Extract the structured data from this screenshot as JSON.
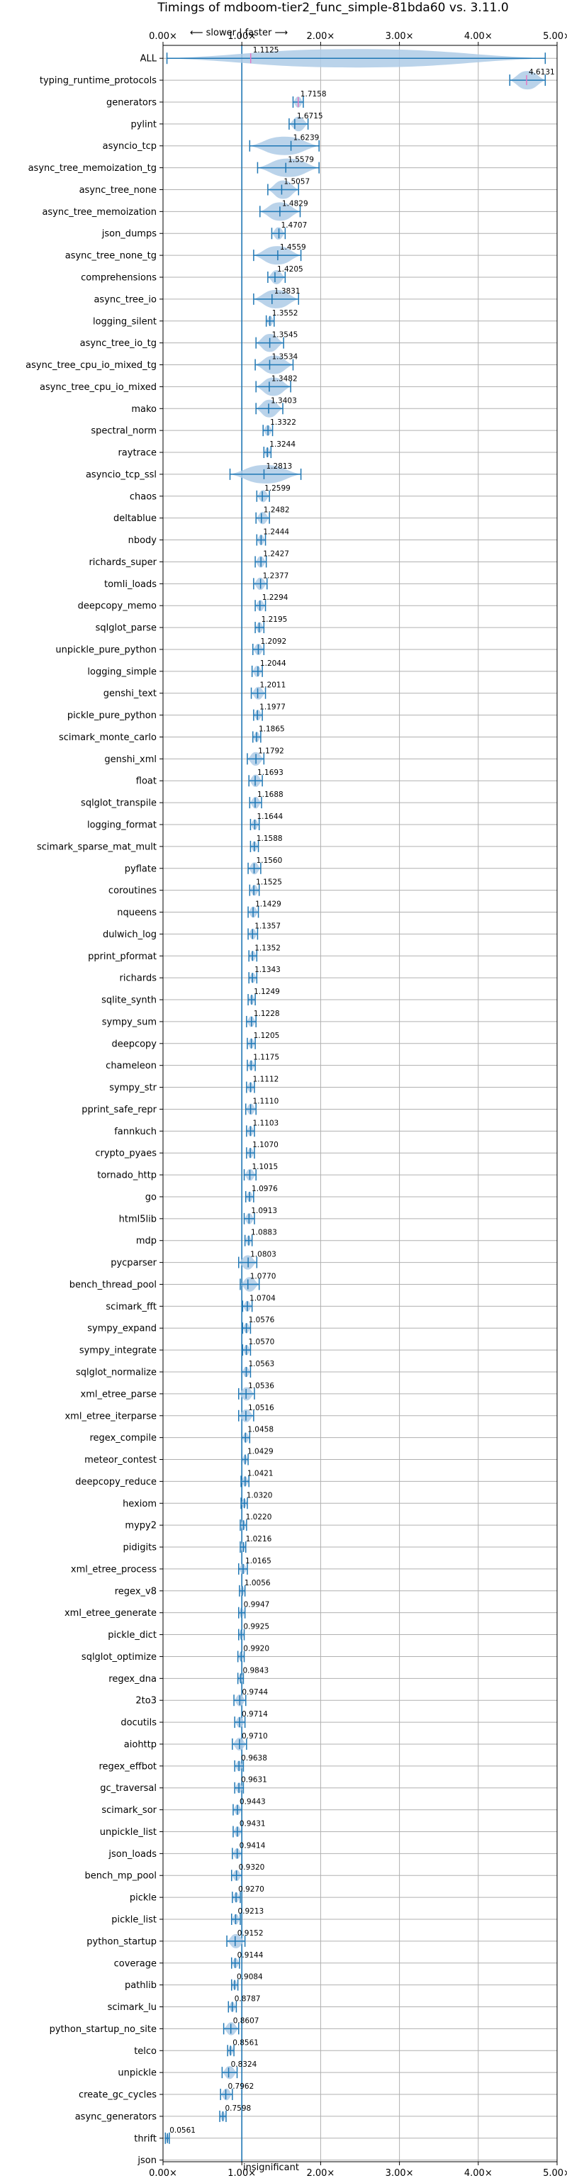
{
  "chart_data": {
    "type": "violin",
    "title": "Timings of mdboom-tier2_func_simple-81bda60 vs. 3.11.0",
    "direction_label": "⟵ slower | faster ⟶",
    "insignificant_label": "insignificant",
    "insignificant_row": "json",
    "xlim": [
      0,
      5
    ],
    "xticks": [
      0,
      1,
      2,
      3,
      4,
      5
    ],
    "xtick_labels": [
      "0.00×",
      "1.00×",
      "2.00×",
      "3.00×",
      "4.00×",
      "5.00×"
    ],
    "reference_x": 1.0,
    "grid": true,
    "categories": [
      "ALL",
      "typing_runtime_protocols",
      "generators",
      "pylint",
      "asyncio_tcp",
      "async_tree_memoization_tg",
      "async_tree_none",
      "async_tree_memoization",
      "json_dumps",
      "async_tree_none_tg",
      "comprehensions",
      "async_tree_io",
      "logging_silent",
      "async_tree_io_tg",
      "async_tree_cpu_io_mixed_tg",
      "async_tree_cpu_io_mixed",
      "mako",
      "spectral_norm",
      "raytrace",
      "asyncio_tcp_ssl",
      "chaos",
      "deltablue",
      "nbody",
      "richards_super",
      "tomli_loads",
      "deepcopy_memo",
      "sqlglot_parse",
      "unpickle_pure_python",
      "logging_simple",
      "genshi_text",
      "pickle_pure_python",
      "scimark_monte_carlo",
      "genshi_xml",
      "float",
      "sqlglot_transpile",
      "logging_format",
      "scimark_sparse_mat_mult",
      "pyflate",
      "coroutines",
      "nqueens",
      "dulwich_log",
      "pprint_pformat",
      "richards",
      "sqlite_synth",
      "sympy_sum",
      "deepcopy",
      "chameleon",
      "sympy_str",
      "pprint_safe_repr",
      "fannkuch",
      "crypto_pyaes",
      "tornado_http",
      "go",
      "html5lib",
      "mdp",
      "pycparser",
      "bench_thread_pool",
      "scimark_fft",
      "sympy_expand",
      "sympy_integrate",
      "sqlglot_normalize",
      "xml_etree_parse",
      "xml_etree_iterparse",
      "regex_compile",
      "meteor_contest",
      "deepcopy_reduce",
      "hexiom",
      "mypy2",
      "pidigits",
      "xml_etree_process",
      "regex_v8",
      "xml_etree_generate",
      "pickle_dict",
      "sqlglot_optimize",
      "regex_dna",
      "2to3",
      "docutils",
      "aiohttp",
      "regex_effbot",
      "gc_traversal",
      "scimark_sor",
      "unpickle_list",
      "json_loads",
      "bench_mp_pool",
      "pickle",
      "pickle_list",
      "python_startup",
      "coverage",
      "pathlib",
      "scimark_lu",
      "python_startup_no_site",
      "telco",
      "unpickle",
      "create_gc_cycles",
      "async_generators",
      "thrift",
      "json"
    ],
    "value_labels": [
      "1.1125",
      "4.6131",
      "1.7158",
      "1.6715",
      "1.6239",
      "1.5579",
      "1.5057",
      "1.4829",
      "1.4707",
      "1.4559",
      "1.4205",
      "1.3831",
      "1.3552",
      "1.3545",
      "1.3534",
      "1.3482",
      "1.3403",
      "1.3322",
      "1.3244",
      "1.2813",
      "1.2599",
      "1.2482",
      "1.2444",
      "1.2427",
      "1.2377",
      "1.2294",
      "1.2195",
      "1.2092",
      "1.2044",
      "1.2011",
      "1.1977",
      "1.1865",
      "1.1792",
      "1.1693",
      "1.1688",
      "1.1644",
      "1.1588",
      "1.1560",
      "1.1525",
      "1.1429",
      "1.1357",
      "1.1352",
      "1.1343",
      "1.1249",
      "1.1228",
      "1.1205",
      "1.1175",
      "1.1112",
      "1.1110",
      "1.1103",
      "1.1070",
      "1.1015",
      "1.0976",
      "1.0913",
      "1.0883",
      "1.0803",
      "1.0770",
      "1.0704",
      "1.0576",
      "1.0570",
      "1.0563",
      "1.0536",
      "1.0516",
      "1.0458",
      "1.0429",
      "1.0421",
      "1.0320",
      "1.0220",
      "1.0216",
      "1.0165",
      "1.0056",
      "0.9947",
      "0.9925",
      "0.9920",
      "0.9843",
      "0.9744",
      "0.9714",
      "0.9710",
      "0.9638",
      "0.9631",
      "0.9443",
      "0.9431",
      "0.9414",
      "0.9320",
      "0.9270",
      "0.9213",
      "0.9152",
      "0.9144",
      "0.9084",
      "0.8787",
      "0.8607",
      "0.8561",
      "0.8324",
      "0.7962",
      "0.7598",
      "0.0561",
      ""
    ],
    "ranges": [
      [
        0.05,
        4.85
      ],
      [
        4.4,
        4.85
      ],
      [
        1.65,
        1.78
      ],
      [
        1.6,
        1.84
      ],
      [
        1.1,
        1.98
      ],
      [
        1.2,
        1.98
      ],
      [
        1.33,
        1.72
      ],
      [
        1.23,
        1.74
      ],
      [
        1.38,
        1.55
      ],
      [
        1.15,
        1.75
      ],
      [
        1.33,
        1.55
      ],
      [
        1.15,
        1.72
      ],
      [
        1.31,
        1.41
      ],
      [
        1.18,
        1.53
      ],
      [
        1.17,
        1.65
      ],
      [
        1.18,
        1.62
      ],
      [
        1.18,
        1.52
      ],
      [
        1.27,
        1.39
      ],
      [
        1.28,
        1.37
      ],
      [
        0.85,
        1.75
      ],
      [
        1.19,
        1.35
      ],
      [
        1.18,
        1.35
      ],
      [
        1.19,
        1.3
      ],
      [
        1.17,
        1.31
      ],
      [
        1.15,
        1.32
      ],
      [
        1.17,
        1.3
      ],
      [
        1.17,
        1.28
      ],
      [
        1.14,
        1.28
      ],
      [
        1.13,
        1.26
      ],
      [
        1.12,
        1.3
      ],
      [
        1.15,
        1.26
      ],
      [
        1.14,
        1.24
      ],
      [
        1.07,
        1.28
      ],
      [
        1.09,
        1.26
      ],
      [
        1.1,
        1.25
      ],
      [
        1.11,
        1.22
      ],
      [
        1.11,
        1.21
      ],
      [
        1.08,
        1.24
      ],
      [
        1.1,
        1.22
      ],
      [
        1.08,
        1.21
      ],
      [
        1.08,
        1.2
      ],
      [
        1.09,
        1.19
      ],
      [
        1.09,
        1.19
      ],
      [
        1.08,
        1.17
      ],
      [
        1.06,
        1.18
      ],
      [
        1.07,
        1.17
      ],
      [
        1.07,
        1.17
      ],
      [
        1.06,
        1.16
      ],
      [
        1.05,
        1.18
      ],
      [
        1.06,
        1.16
      ],
      [
        1.06,
        1.16
      ],
      [
        1.03,
        1.18
      ],
      [
        1.05,
        1.15
      ],
      [
        1.03,
        1.16
      ],
      [
        1.04,
        1.13
      ],
      [
        0.96,
        1.19
      ],
      [
        0.98,
        1.22
      ],
      [
        1.01,
        1.13
      ],
      [
        1.01,
        1.11
      ],
      [
        1.01,
        1.11
      ],
      [
        1.0,
        1.11
      ],
      [
        0.96,
        1.16
      ],
      [
        0.96,
        1.15
      ],
      [
        1.0,
        1.1
      ],
      [
        1.0,
        1.08
      ],
      [
        0.99,
        1.09
      ],
      [
        0.99,
        1.07
      ],
      [
        0.98,
        1.06
      ],
      [
        0.98,
        1.05
      ],
      [
        0.96,
        1.07
      ],
      [
        0.97,
        1.04
      ],
      [
        0.96,
        1.04
      ],
      [
        0.96,
        1.03
      ],
      [
        0.95,
        1.03
      ],
      [
        0.95,
        1.02
      ],
      [
        0.9,
        1.05
      ],
      [
        0.91,
        1.04
      ],
      [
        0.88,
        1.06
      ],
      [
        0.91,
        1.02
      ],
      [
        0.91,
        1.02
      ],
      [
        0.89,
        1.0
      ],
      [
        0.89,
        1.0
      ],
      [
        0.88,
        1.0
      ],
      [
        0.87,
        1.0
      ],
      [
        0.88,
        0.98
      ],
      [
        0.87,
        0.98
      ],
      [
        0.81,
        1.04
      ],
      [
        0.87,
        0.97
      ],
      [
        0.87,
        0.95
      ],
      [
        0.83,
        0.93
      ],
      [
        0.77,
        0.96
      ],
      [
        0.82,
        0.9
      ],
      [
        0.75,
        0.94
      ],
      [
        0.73,
        0.88
      ],
      [
        0.72,
        0.8
      ],
      [
        0.03,
        0.08
      ],
      [
        0,
        0
      ]
    ],
    "series_color": "#1f77b4",
    "violin_color": "#aecbe6",
    "median_color": "#e377c2"
  }
}
